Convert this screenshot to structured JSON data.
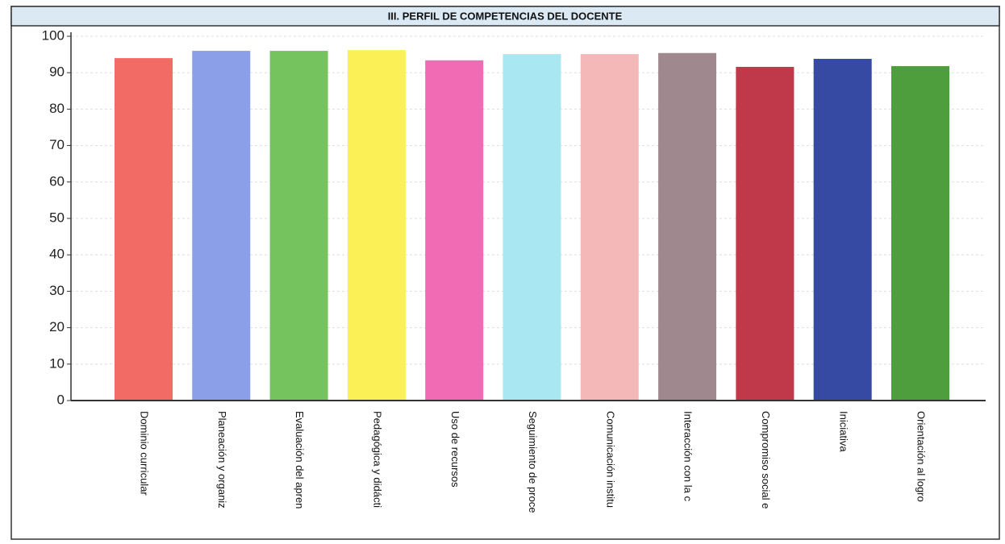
{
  "chart_data": {
    "type": "bar",
    "title": "III. PERFIL DE COMPETENCIAS DEL  DOCENTE",
    "categories": [
      "Dominio curricular",
      "Planeación y organiz",
      "Evaluación del apren",
      "Pedagógica y didácti",
      "Uso de recursos",
      "Seguimiento de proce",
      "Comunicación institu",
      "Interacción con la c",
      "Compromiso social e",
      "Iniciativa",
      "Orientación al logro"
    ],
    "values": [
      94.0,
      96.0,
      96.0,
      96.2,
      93.4,
      95.1,
      95.1,
      95.4,
      91.6,
      93.8,
      91.8
    ],
    "colors": [
      "#f26b64",
      "#8b9ee8",
      "#74c35e",
      "#fbf056",
      "#f06ab4",
      "#a9e7f2",
      "#f4b8b8",
      "#a0888f",
      "#c0394a",
      "#364aa3",
      "#4f9e3d"
    ],
    "ylim": [
      0,
      100
    ],
    "yticks": [
      0,
      10,
      20,
      30,
      40,
      50,
      60,
      70,
      80,
      90,
      100
    ],
    "grid": true
  }
}
